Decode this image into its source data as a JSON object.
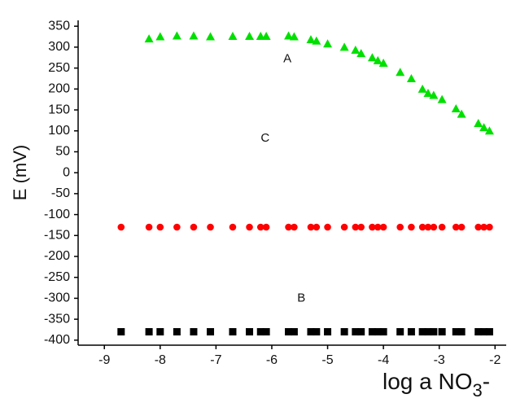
{
  "chart_data": {
    "type": "scatter",
    "x_label": [
      "log a NO",
      "3",
      "-"
    ],
    "y_label": "E (mV)",
    "x": [
      -8.7,
      -8.2,
      -8.0,
      -7.7,
      -7.4,
      -7.1,
      -6.7,
      -6.4,
      -6.2,
      -6.1,
      -5.7,
      -5.6,
      -5.3,
      -5.2,
      -5.0,
      -4.7,
      -4.5,
      -4.4,
      -4.2,
      -4.1,
      -4.0,
      -3.7,
      -3.5,
      -3.3,
      -3.2,
      -3.1,
      -2.95,
      -2.7,
      -2.6,
      -2.3,
      -2.2,
      -2.1
    ],
    "series": [
      {
        "marker": "triangle",
        "color": "#00e000",
        "values": [
          null,
          320,
          325,
          327,
          327,
          325,
          326,
          326,
          326,
          326,
          327,
          325,
          318,
          315,
          308,
          300,
          293,
          285,
          275,
          268,
          262,
          240,
          225,
          200,
          190,
          185,
          175,
          153,
          140,
          118,
          108,
          100
        ]
      },
      {
        "marker": "circle",
        "color": "#ff0000",
        "values": [
          -130,
          -130,
          -130,
          -130,
          -130,
          -130,
          -130,
          -130,
          -130,
          -130,
          -130,
          -130,
          -130,
          -130,
          -130,
          -130,
          -130,
          -130,
          -130,
          -130,
          -130,
          -130,
          -130,
          -130,
          -130,
          -130,
          -130,
          -130,
          -130,
          -130,
          -130,
          -130
        ]
      },
      {
        "marker": "square",
        "color": "#000000",
        "values": [
          -380,
          -380,
          -380,
          -380,
          -380,
          -380,
          -380,
          -380,
          -380,
          -380,
          -380,
          -380,
          -380,
          -380,
          -380,
          -380,
          -380,
          -380,
          -380,
          -380,
          -380,
          -380,
          -380,
          -380,
          -380,
          -380,
          -380,
          -380,
          -380,
          -380,
          -380,
          -380
        ]
      }
    ],
    "annotations": [
      {
        "text": "A",
        "x": -5.72,
        "y": 272
      },
      {
        "text": "C",
        "x": -6.12,
        "y": 82
      },
      {
        "text": "B",
        "x": -5.47,
        "y": -300
      }
    ],
    "xlim": [
      -9.47,
      -1.8
    ],
    "ylim": [
      -412,
      364
    ],
    "xticks": [
      -9,
      -8,
      -7,
      -6,
      -5,
      -4,
      -3,
      -2
    ],
    "yticks": [
      -400,
      -350,
      -300,
      -250,
      -200,
      -150,
      -100,
      -50,
      0,
      50,
      100,
      150,
      200,
      250,
      300,
      350
    ]
  }
}
